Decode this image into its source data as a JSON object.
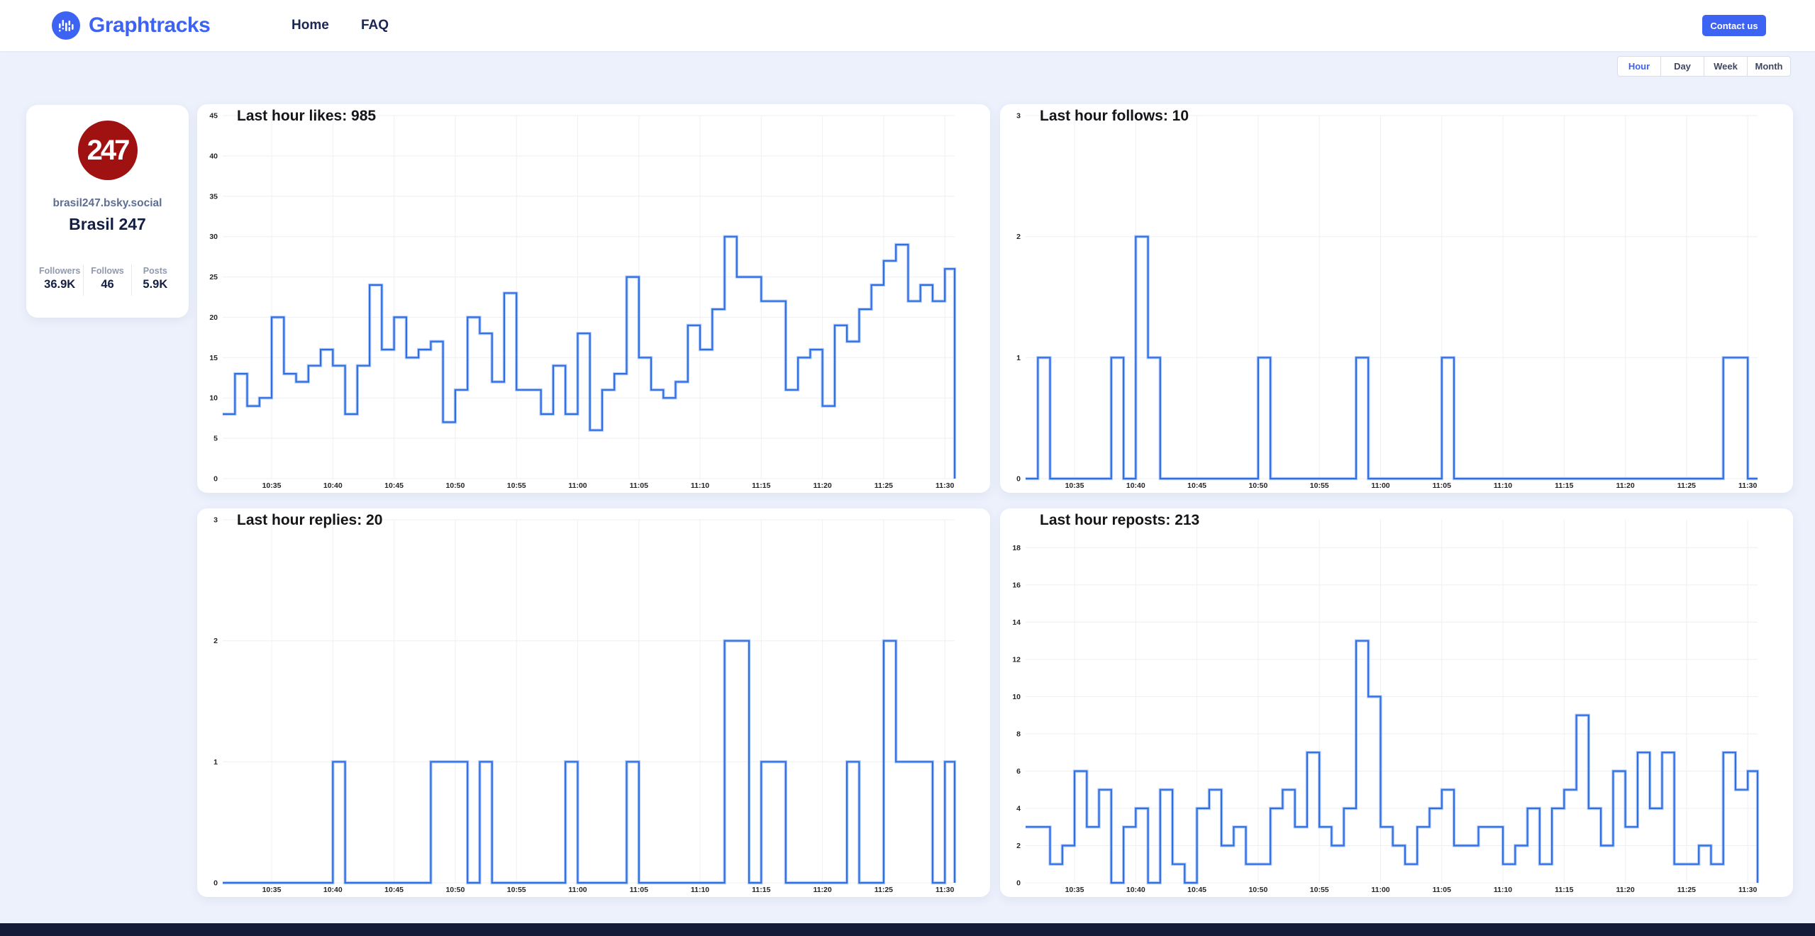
{
  "header": {
    "brand": "Graphtracks",
    "nav": [
      {
        "label": "Home"
      },
      {
        "label": "FAQ"
      }
    ],
    "contact_button": "Contact us"
  },
  "time_range": {
    "options": [
      "Hour",
      "Day",
      "Week",
      "Month"
    ],
    "selected": "Hour"
  },
  "profile": {
    "avatar_text": "247",
    "handle": "brasil247.bsky.social",
    "name": "Brasil 247",
    "stats": [
      {
        "label": "Followers",
        "value": "36.9K"
      },
      {
        "label": "Follows",
        "value": "46"
      },
      {
        "label": "Posts",
        "value": "5.9K"
      }
    ]
  },
  "colors": {
    "brand_blue": "#3D63F2",
    "page_background": "#EDF1FC",
    "chart_line": "#2F6FE4",
    "chart_line_halo": "#A9C3F6",
    "grid_line": "#F0F0F3",
    "avatar_red": "#A01212",
    "footer_navy": "#141A38",
    "nav_text": "#1B2653"
  },
  "chart_data": [
    {
      "type": "line",
      "subtype": "step-after",
      "title": "Last hour likes: 985",
      "metric": "likes",
      "total": 985,
      "x_start": "10:31",
      "x_interval_minutes": 1,
      "x_ticks": [
        "10:35",
        "10:40",
        "10:45",
        "10:50",
        "10:55",
        "11:00",
        "11:05",
        "11:10",
        "11:15",
        "11:20",
        "11:25",
        "11:30"
      ],
      "x_tick_indices": [
        4,
        9,
        14,
        19,
        24,
        29,
        34,
        39,
        44,
        49,
        54,
        59
      ],
      "yticks": [
        0,
        5,
        10,
        15,
        20,
        25,
        30,
        35,
        40,
        45
      ],
      "ylim": [
        0,
        45
      ],
      "grid": true,
      "legend": "none",
      "values": [
        8,
        13,
        9,
        10,
        20,
        13,
        12,
        14,
        16,
        14,
        8,
        14,
        24,
        16,
        20,
        15,
        16,
        17,
        7,
        11,
        20,
        18,
        12,
        23,
        11,
        11,
        8,
        14,
        8,
        18,
        6,
        11,
        13,
        25,
        15,
        11,
        10,
        12,
        19,
        16,
        21,
        30,
        25,
        25,
        22,
        22,
        11,
        15,
        16,
        9,
        19,
        17,
        21,
        24,
        27,
        29,
        22,
        24,
        22,
        26
      ]
    },
    {
      "type": "line",
      "subtype": "step-after",
      "title": "Last hour follows: 10",
      "metric": "follows",
      "total": 10,
      "x_start": "10:31",
      "x_interval_minutes": 1,
      "x_ticks": [
        "10:35",
        "10:40",
        "10:45",
        "10:50",
        "10:55",
        "11:00",
        "11:05",
        "11:10",
        "11:15",
        "11:20",
        "11:25",
        "11:30"
      ],
      "x_tick_indices": [
        4,
        9,
        14,
        19,
        24,
        29,
        34,
        39,
        44,
        49,
        54,
        59
      ],
      "yticks": [
        0,
        1,
        2,
        3
      ],
      "ylim": [
        0,
        3
      ],
      "grid": true,
      "legend": "none",
      "values": [
        0,
        1,
        0,
        0,
        0,
        0,
        0,
        1,
        0,
        2,
        1,
        0,
        0,
        0,
        0,
        0,
        0,
        0,
        0,
        1,
        0,
        0,
        0,
        0,
        0,
        0,
        0,
        1,
        0,
        0,
        0,
        0,
        0,
        0,
        1,
        0,
        0,
        0,
        0,
        0,
        0,
        0,
        0,
        0,
        0,
        0,
        0,
        0,
        0,
        0,
        0,
        0,
        0,
        0,
        0,
        0,
        0,
        1,
        1,
        0
      ]
    },
    {
      "type": "line",
      "subtype": "step-after",
      "title": "Last hour replies: 20",
      "metric": "replies",
      "total": 20,
      "x_start": "10:31",
      "x_interval_minutes": 1,
      "x_ticks": [
        "10:35",
        "10:40",
        "10:45",
        "10:50",
        "10:55",
        "11:00",
        "11:05",
        "11:10",
        "11:15",
        "11:20",
        "11:25",
        "11:30"
      ],
      "x_tick_indices": [
        4,
        9,
        14,
        19,
        24,
        29,
        34,
        39,
        44,
        49,
        54,
        59
      ],
      "yticks": [
        0,
        1,
        2,
        3
      ],
      "ylim": [
        0,
        3
      ],
      "grid": true,
      "legend": "none",
      "values": [
        0,
        0,
        0,
        0,
        0,
        0,
        0,
        0,
        0,
        1,
        0,
        0,
        0,
        0,
        0,
        0,
        0,
        1,
        1,
        1,
        0,
        1,
        0,
        0,
        0,
        0,
        0,
        0,
        1,
        0,
        0,
        0,
        0,
        1,
        0,
        0,
        0,
        0,
        0,
        0,
        0,
        2,
        2,
        0,
        1,
        1,
        0,
        0,
        0,
        0,
        0,
        1,
        0,
        0,
        2,
        1,
        1,
        1,
        0,
        1
      ]
    },
    {
      "type": "line",
      "subtype": "step-after",
      "title": "Last hour reposts: 213",
      "metric": "reposts",
      "total": 213,
      "x_start": "10:31",
      "x_interval_minutes": 1,
      "x_ticks": [
        "10:35",
        "10:40",
        "10:45",
        "10:50",
        "10:55",
        "11:00",
        "11:05",
        "11:10",
        "11:15",
        "11:20",
        "11:25",
        "11:30"
      ],
      "x_tick_indices": [
        4,
        9,
        14,
        19,
        24,
        29,
        34,
        39,
        44,
        49,
        54,
        59
      ],
      "yticks": [
        0,
        2,
        4,
        6,
        8,
        10,
        12,
        14,
        16,
        18
      ],
      "ylim": [
        0,
        19.5
      ],
      "grid": true,
      "legend": "none",
      "values": [
        3,
        3,
        1,
        2,
        6,
        3,
        5,
        0,
        3,
        4,
        0,
        5,
        1,
        0,
        4,
        5,
        2,
        3,
        1,
        1,
        4,
        5,
        3,
        7,
        3,
        2,
        4,
        13,
        10,
        3,
        2,
        1,
        3,
        4,
        5,
        2,
        2,
        3,
        3,
        1,
        2,
        4,
        1,
        4,
        5,
        9,
        4,
        2,
        6,
        3,
        7,
        4,
        7,
        1,
        1,
        2,
        1,
        7,
        5,
        6
      ]
    }
  ]
}
